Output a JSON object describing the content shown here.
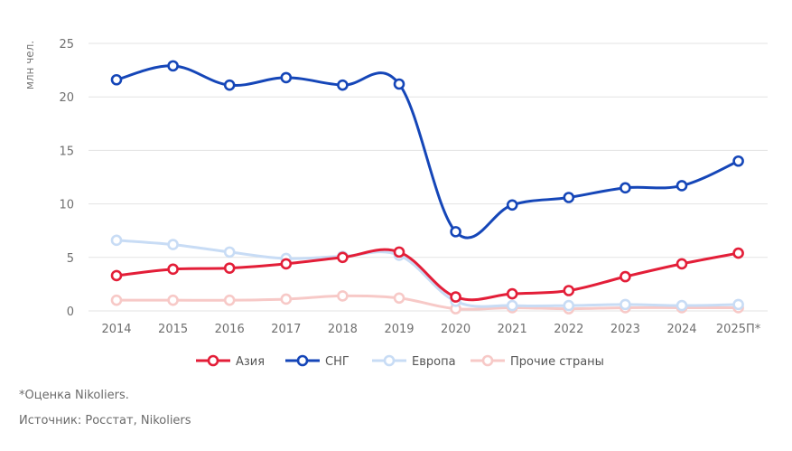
{
  "chart_data": {
    "type": "line",
    "title": "",
    "xlabel": "",
    "ylabel": "млн чел.",
    "ylim": [
      0,
      25
    ],
    "yticks": [
      0,
      5,
      10,
      15,
      20,
      25
    ],
    "grid": true,
    "legend_position": "bottom",
    "categories": [
      "2014",
      "2015",
      "2016",
      "2017",
      "2018",
      "2019",
      "2020",
      "2021",
      "2022",
      "2023",
      "2024",
      "2025П*"
    ],
    "series": [
      {
        "name": "Азия",
        "color": "#e31e38",
        "values": [
          3.3,
          3.9,
          4.0,
          4.4,
          5.0,
          5.5,
          1.3,
          1.6,
          1.9,
          3.2,
          4.4,
          5.4
        ]
      },
      {
        "name": "СНГ",
        "color": "#1546b8",
        "values": [
          21.6,
          22.9,
          21.1,
          21.8,
          21.1,
          21.2,
          7.4,
          9.9,
          10.6,
          11.5,
          11.7,
          14.0
        ]
      },
      {
        "name": "Европа",
        "color": "#c8dcf5",
        "values": [
          6.6,
          6.2,
          5.5,
          4.9,
          5.1,
          5.2,
          0.9,
          0.5,
          0.5,
          0.6,
          0.5,
          0.6
        ]
      },
      {
        "name": "Прочие страны",
        "color": "#f7c9c7",
        "values": [
          1.0,
          1.0,
          1.0,
          1.1,
          1.4,
          1.2,
          0.2,
          0.3,
          0.2,
          0.3,
          0.3,
          0.3
        ]
      }
    ]
  },
  "notes": {
    "estimate": "*Оценка Nikoliers.",
    "source": "Источник: Росстат, Nikoliers"
  }
}
